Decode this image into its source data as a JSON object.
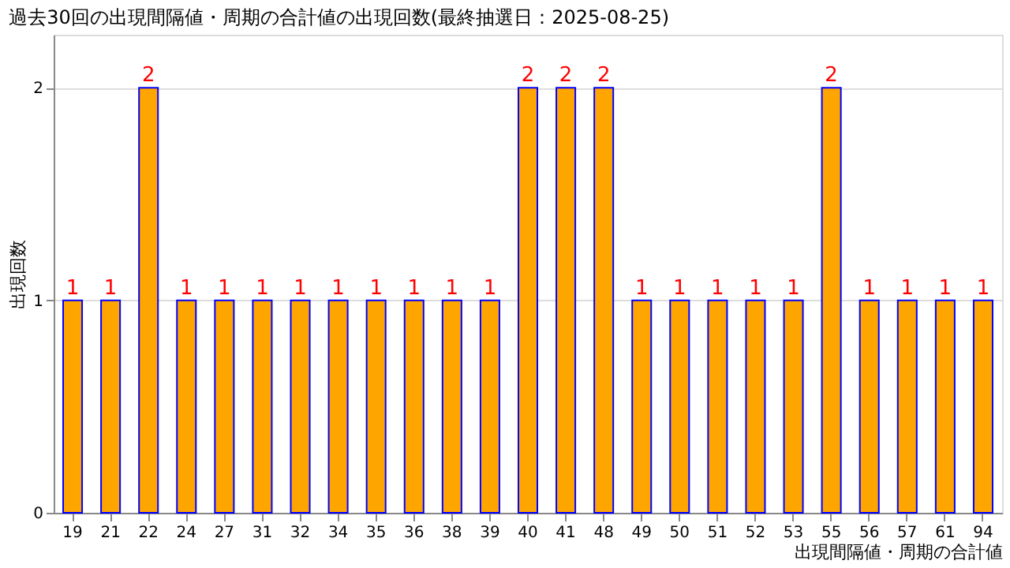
{
  "chart_data": {
    "type": "bar",
    "title": "過去30回の出現間隔値・周期の合計値の出現回数(最終抽選日：2025-08-25)",
    "xlabel": "出現間隔値・周期の合計値",
    "ylabel": "出現回数",
    "categories": [
      "19",
      "21",
      "22",
      "24",
      "27",
      "31",
      "32",
      "34",
      "35",
      "36",
      "38",
      "39",
      "40",
      "41",
      "48",
      "49",
      "50",
      "51",
      "52",
      "53",
      "55",
      "56",
      "57",
      "61",
      "94"
    ],
    "series": [
      {
        "color": "#ffa500",
        "values": [
          1,
          1,
          2,
          1,
          1,
          1,
          1,
          1,
          1,
          1,
          1,
          1,
          2,
          2,
          2,
          1,
          1,
          1,
          1,
          1,
          2,
          1,
          1,
          1,
          1
        ]
      }
    ],
    "ylim": [
      0,
      2.25
    ],
    "yticks": [
      0,
      1,
      2
    ],
    "grid": "y",
    "data_labels": true
  }
}
